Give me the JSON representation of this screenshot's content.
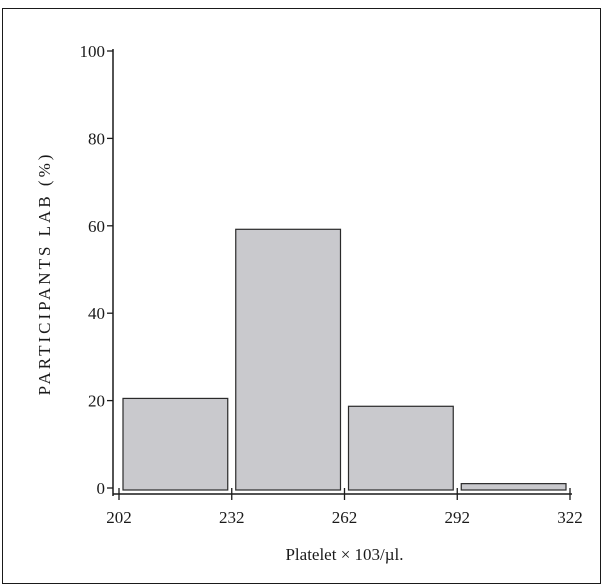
{
  "chart_data": {
    "type": "bar",
    "histogram": true,
    "bin_edges": [
      202,
      232,
      262,
      292,
      322
    ],
    "categories": [
      "202-232",
      "232-262",
      "262-292",
      "292-322"
    ],
    "values": [
      20.5,
      59.2,
      18.7,
      1.0
    ],
    "xlabel": "Platelet × 103/µl.",
    "ylabel": "PARTICIPANTS LAB (%)",
    "ylim": [
      0,
      100
    ],
    "yticks": [
      0,
      20,
      40,
      60,
      80,
      100
    ],
    "xticks": [
      202,
      232,
      262,
      292,
      322
    ],
    "grid": false,
    "legend": "none",
    "bar_color": "#c9c9cd",
    "bar_edge_color": "#2a2a2a"
  }
}
